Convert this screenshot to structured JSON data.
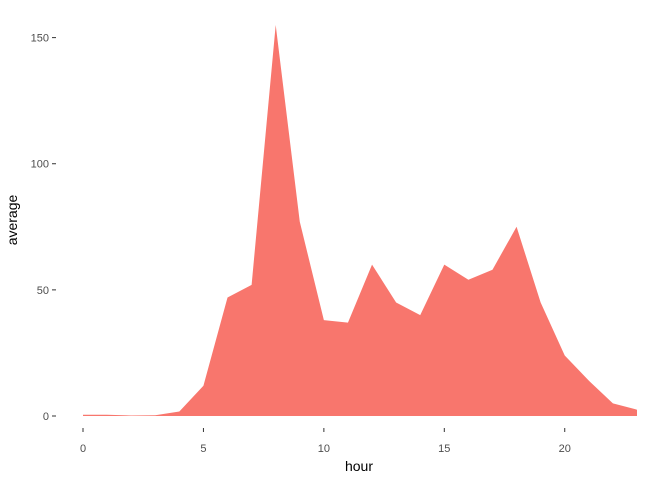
{
  "colors": {
    "fill": "#F8766D",
    "tick_text": "#4d4d4d",
    "axis_title": "#000000",
    "background": "#ffffff"
  },
  "chart_data": {
    "type": "area",
    "title": "",
    "xlabel": "hour",
    "ylabel": "average",
    "xlim": [
      0,
      23
    ],
    "ylim": [
      0,
      155
    ],
    "x_ticks": [
      0,
      5,
      10,
      15,
      20
    ],
    "y_ticks": [
      0,
      50,
      100,
      150
    ],
    "grid": false,
    "legend": "none",
    "series": [
      {
        "x": [
          0,
          1,
          2,
          3,
          4,
          5,
          6,
          7,
          8,
          9,
          10,
          11,
          12,
          13,
          14,
          15,
          16,
          17,
          18,
          19,
          20,
          21,
          22,
          23
        ],
        "values": [
          0.5,
          0.5,
          0.2,
          0.3,
          1.8,
          12,
          47,
          52,
          155,
          77,
          38,
          37,
          60,
          45,
          40,
          60,
          54,
          58,
          75,
          45,
          24,
          14,
          5,
          2.5
        ]
      }
    ]
  }
}
